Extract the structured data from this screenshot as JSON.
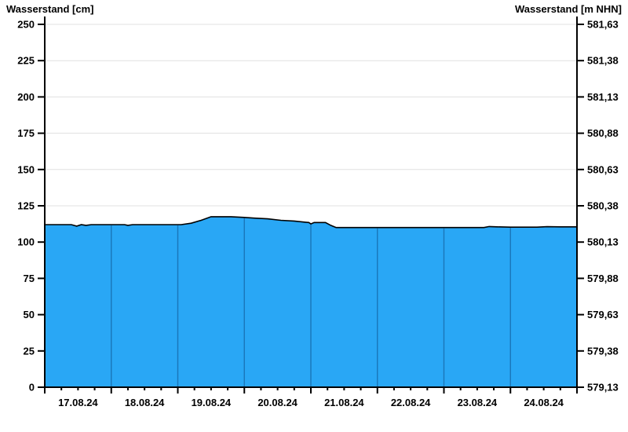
{
  "header": {
    "left_title": "Wasserstand [cm]",
    "right_title": "Wasserstand [m NHN]"
  },
  "chart_data": {
    "type": "area",
    "title": "",
    "left_axis": {
      "label": "Wasserstand [cm]",
      "tick_labels": [
        "250",
        "225",
        "200",
        "175",
        "150",
        "125",
        "100",
        "75",
        "50",
        "25",
        "0"
      ],
      "tick_values": [
        250,
        225,
        200,
        175,
        150,
        125,
        100,
        75,
        50,
        25,
        0
      ],
      "range": [
        0,
        250
      ],
      "grid": true
    },
    "right_axis": {
      "label": "Wasserstand [m NHN]",
      "tick_labels": [
        "581,63",
        "581,38",
        "581,13",
        "580,88",
        "580,63",
        "580,38",
        "580,13",
        "579,88",
        "579,63",
        "579,38",
        "579,13"
      ],
      "range": [
        579.13,
        581.63
      ]
    },
    "x_axis": {
      "labels": [
        "17.08.24",
        "18.08.24",
        "19.08.24",
        "20.08.24",
        "21.08.24",
        "22.08.24",
        "23.08.24",
        "24.08.24"
      ],
      "days": 8,
      "minor_divisions_per_day": 4,
      "range_days": [
        0,
        8
      ]
    },
    "series": [
      {
        "name": "Wasserstand",
        "unit": "cm",
        "points": [
          [
            0.0,
            112
          ],
          [
            0.4,
            112
          ],
          [
            0.48,
            111
          ],
          [
            0.55,
            112
          ],
          [
            0.62,
            111.5
          ],
          [
            0.7,
            112
          ],
          [
            1.2,
            112
          ],
          [
            1.25,
            111.5
          ],
          [
            1.32,
            112
          ],
          [
            2.05,
            112
          ],
          [
            2.2,
            113
          ],
          [
            2.35,
            115
          ],
          [
            2.5,
            117.5
          ],
          [
            2.8,
            117.5
          ],
          [
            3.0,
            117
          ],
          [
            3.15,
            116.5
          ],
          [
            3.35,
            116
          ],
          [
            3.55,
            115
          ],
          [
            3.75,
            114.5
          ],
          [
            3.92,
            113.7
          ],
          [
            3.97,
            113.5
          ],
          [
            4.0,
            112.5
          ],
          [
            4.05,
            113.5
          ],
          [
            4.22,
            113.5
          ],
          [
            4.3,
            111.5
          ],
          [
            4.38,
            110
          ],
          [
            5.0,
            110
          ],
          [
            6.0,
            110
          ],
          [
            6.6,
            110
          ],
          [
            6.68,
            110.7
          ],
          [
            6.8,
            110.5
          ],
          [
            7.0,
            110.3
          ],
          [
            7.4,
            110.3
          ],
          [
            7.55,
            110.6
          ],
          [
            7.75,
            110.5
          ],
          [
            8.0,
            110.5
          ]
        ]
      }
    ],
    "colors": {
      "area_fill": "#29a7f5",
      "area_top_line": "#000000",
      "day_separator_line": "#1a76b8",
      "grid_line": "#e0e0e0",
      "axis_line": "#000000",
      "text": "#000000",
      "background": "#ffffff"
    },
    "legend": "none"
  }
}
